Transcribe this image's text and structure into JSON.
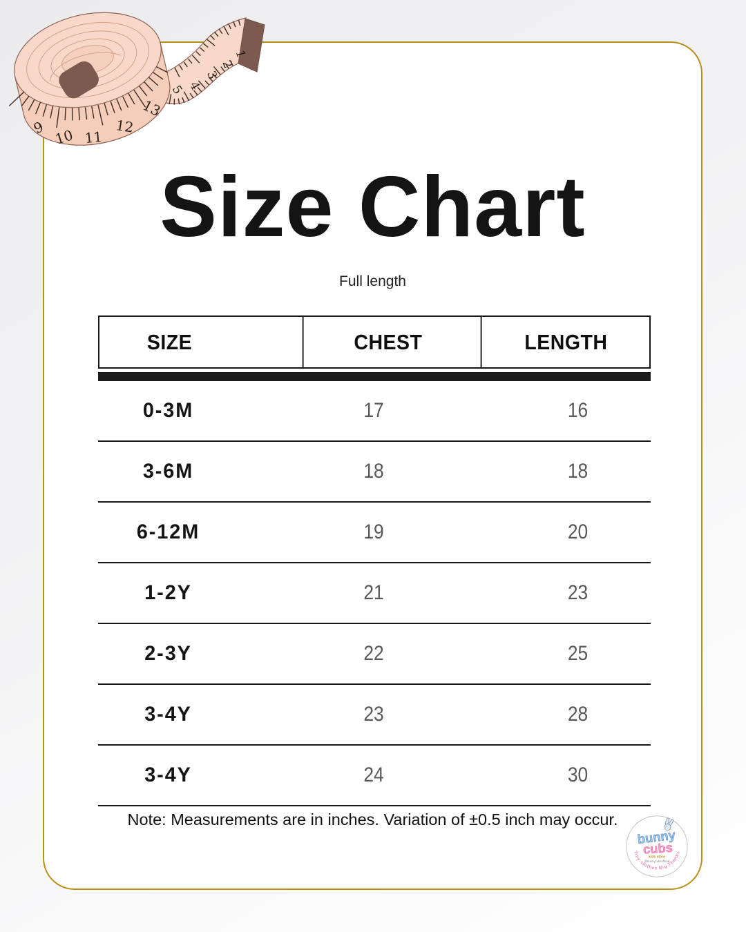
{
  "canvas": {
    "background_outer": "#f0f0f2",
    "card_background": "#ffffff",
    "card_border_color": "#b98e1b",
    "divider_color": "#1c1c1c"
  },
  "header": {
    "title": "Size Chart",
    "subtitle": "Full length"
  },
  "chart_data": {
    "type": "table",
    "title": "Size Chart",
    "subtitle": "Full length",
    "columns": [
      "SIZE",
      "CHEST",
      "LENGTH"
    ],
    "rows": [
      {
        "size": "0-3M",
        "chest": "17",
        "length": "16"
      },
      {
        "size": "3-6M",
        "chest": "18",
        "length": "18"
      },
      {
        "size": "6-12M",
        "chest": "19",
        "length": "20"
      },
      {
        "size": "1-2Y",
        "chest": "21",
        "length": "23"
      },
      {
        "size": "2-3Y",
        "chest": "22",
        "length": "25"
      },
      {
        "size": "3-4Y",
        "chest": "23",
        "length": "28"
      },
      {
        "size": "3-4Y",
        "chest": "24",
        "length": "30"
      }
    ]
  },
  "note": "Note: Measurements are in inches. Variation of ±0.5 inch may occur.",
  "tape_measure": {
    "coil_numbers": [
      "9",
      "10",
      "11",
      "12",
      "13"
    ],
    "tail_numbers": [
      "5",
      "4",
      "3",
      "2",
      "1"
    ],
    "tape_color": "#f8d9c9",
    "tape_side_color": "#f5cdbb",
    "outline_color": "#8c6154",
    "tip_color": "#7d5a50"
  },
  "logo": {
    "word1": "bunny",
    "word2": "cubs",
    "tagline_small": "kids store",
    "handle": "@bunnycubsofficial",
    "arc_text": "Tiny clothes Big Thanks",
    "word1_color": "#92c3ee",
    "word2_color": "#f6a0c9",
    "arc_color": "#ee86b4",
    "tagline_color": "#b8932a",
    "handle_color": "#8a8a8a"
  }
}
